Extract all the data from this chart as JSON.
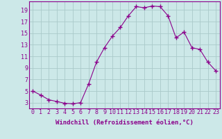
{
  "x": [
    0,
    1,
    2,
    3,
    4,
    5,
    6,
    7,
    8,
    9,
    10,
    11,
    12,
    13,
    14,
    15,
    16,
    17,
    18,
    19,
    20,
    21,
    22,
    23
  ],
  "y": [
    5.0,
    4.3,
    3.5,
    3.2,
    2.9,
    2.8,
    3.0,
    6.2,
    10.0,
    12.5,
    14.5,
    16.0,
    18.0,
    19.6,
    19.4,
    19.7,
    19.6,
    18.0,
    14.2,
    15.2,
    12.5,
    12.2,
    10.0,
    8.5
  ],
  "line_color": "#8B008B",
  "marker": "+",
  "marker_size": 4,
  "bg_color": "#cce8e8",
  "grid_color": "#aacaca",
  "xlabel": "Windchill (Refroidissement éolien,°C)",
  "ylabel": "",
  "title": "",
  "xlim": [
    -0.5,
    23.5
  ],
  "ylim": [
    2.0,
    20.5
  ],
  "yticks": [
    3,
    5,
    7,
    9,
    11,
    13,
    15,
    17,
    19
  ],
  "xticks": [
    0,
    1,
    2,
    3,
    4,
    5,
    6,
    7,
    8,
    9,
    10,
    11,
    12,
    13,
    14,
    15,
    16,
    17,
    18,
    19,
    20,
    21,
    22,
    23
  ],
  "spine_color": "#8B008B",
  "tick_color": "#8B008B",
  "label_color": "#8B008B",
  "font_size": 6.0,
  "xlabel_font_size": 6.5
}
